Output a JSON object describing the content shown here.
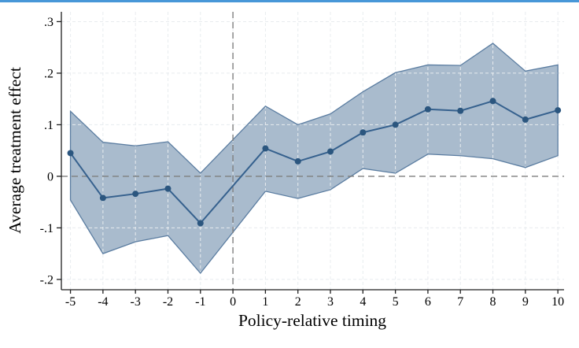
{
  "window": {
    "top_border_color": "#4897d8",
    "background": "#ffffff"
  },
  "chart_data": {
    "type": "line",
    "title": "",
    "xlabel": "Policy-relative timing",
    "ylabel": "Average treatment effect",
    "x": [
      -5,
      -4,
      -3,
      -2,
      -1,
      1,
      2,
      3,
      4,
      5,
      6,
      7,
      8,
      9,
      10
    ],
    "estimate": [
      0.045,
      -0.042,
      -0.034,
      -0.024,
      -0.091,
      0.054,
      0.029,
      0.048,
      0.085,
      0.1,
      0.13,
      0.127,
      0.146,
      0.11,
      0.128
    ],
    "ci_upper": [
      0.126,
      0.066,
      0.059,
      0.067,
      0.006,
      0.136,
      0.1,
      0.121,
      0.164,
      0.201,
      0.216,
      0.215,
      0.258,
      0.204,
      0.216
    ],
    "ci_lower": [
      -0.046,
      -0.15,
      -0.127,
      -0.115,
      -0.188,
      -0.029,
      -0.043,
      -0.026,
      0.015,
      0.006,
      0.043,
      0.04,
      0.034,
      0.017,
      0.04
    ],
    "x_ticks": [
      -5,
      -4,
      -3,
      -2,
      -1,
      0,
      1,
      2,
      3,
      4,
      5,
      6,
      7,
      8,
      9,
      10
    ],
    "x_tick_labels": [
      "-5",
      "-4",
      "-3",
      "-2",
      "-1",
      "0",
      "1",
      "2",
      "3",
      "4",
      "5",
      "6",
      "7",
      "8",
      "9",
      "10"
    ],
    "y_ticks": [
      0.3,
      0.2,
      0.1,
      0,
      -0.1,
      -0.2
    ],
    "y_tick_labels": [
      ".3",
      ".2",
      ".1",
      "0",
      "-.1",
      "-.2"
    ],
    "xlim": [
      -5.28,
      10.19
    ],
    "ylim": [
      -0.22,
      0.319
    ],
    "reference_lines": {
      "horizontal_y": 0,
      "vertical_x": 0
    },
    "grid": true,
    "legend_position": "none",
    "marker": "circle",
    "colors": {
      "line": "#36618e",
      "marker": "#2b567f",
      "band_fill": "#54779c",
      "band_fill_opacity": 0.5,
      "band_stroke": "#5b7da1",
      "reference_line": "#7f7f7f",
      "grid_line": "#e8ecef",
      "axis": "#1f1f1f",
      "text": "#000000"
    }
  }
}
